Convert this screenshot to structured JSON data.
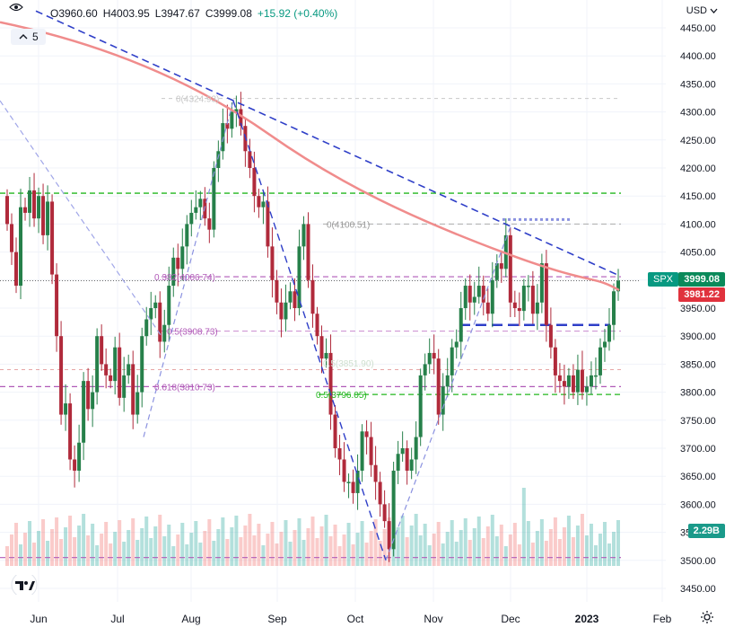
{
  "header": {
    "open": "O3960.60",
    "high": "H4003.95",
    "low": "L3947.67",
    "close": "C3999.08",
    "change": "+15.92 (+0.40%)",
    "interval": "5",
    "currency": "USD"
  },
  "tags": {
    "symbol": "SPX",
    "last_price": "3999.08",
    "ma_value": "3981.22",
    "volume": "2.29B"
  },
  "fib_labels": {
    "top": "0(4324.93)",
    "l382": "0.382(4006.74)",
    "l05": "0.5(3908.73)",
    "l618": "0.618(3810.73)",
    "right0": "0(4100.51)",
    "right05": "0.5(3796.05)",
    "mid": "0.5(3851.90)"
  },
  "colors": {
    "up": "#26804a",
    "down": "#b02a3b",
    "ma": "#f08c8c",
    "trend": "#2f3fc8",
    "green_level": "#22b61e",
    "purple_level": "#b05ab8",
    "price_tag": "#0a8a5a",
    "ma_tag": "#e0323d",
    "volume_tag": "#1a9a8a"
  },
  "chart_data": {
    "type": "candlestick",
    "symbol": "SPX",
    "y_axis_ticks": [
      4450,
      4400,
      4350,
      4300,
      4250,
      4200,
      4150,
      4100,
      4050,
      4000,
      3950,
      3900,
      3850,
      3800,
      3750,
      3700,
      3650,
      3600,
      3550,
      3500,
      3450
    ],
    "y_range": [
      3430,
      4470
    ],
    "x_axis_labels": [
      "Jun",
      "Jul",
      "Aug",
      "Sep",
      "Oct",
      "Nov",
      "Dec",
      "2023",
      "Feb"
    ],
    "closes": [
      4100,
      4050,
      3990,
      4130,
      4120,
      4160,
      4110,
      4150,
      4080,
      4140,
      4010,
      3900,
      3760,
      3780,
      3680,
      3660,
      3710,
      3820,
      3770,
      3800,
      3900,
      3850,
      3830,
      3820,
      3880,
      3790,
      3830,
      3850,
      3760,
      3800,
      3900,
      3930,
      3950,
      3960,
      3890,
      3920,
      3990,
      4040,
      4020,
      4060,
      4100,
      4120,
      4130,
      4145,
      4110,
      4090,
      4200,
      4230,
      4280,
      4270,
      4300,
      4305,
      4275,
      4230,
      4200,
      4150,
      4130,
      4140,
      4060,
      4000,
      3960,
      3930,
      3960,
      3980,
      3950,
      4060,
      4100,
      4000,
      3940,
      3900,
      3860,
      3870,
      3760,
      3700,
      3680,
      3640,
      3640,
      3620,
      3660,
      3730,
      3720,
      3670,
      3640,
      3600,
      3570,
      3520,
      3660,
      3690,
      3700,
      3660,
      3680,
      3720,
      3830,
      3850,
      3870,
      3860,
      3760,
      3810,
      3830,
      3880,
      3890,
      3950,
      3990,
      3960,
      3970,
      3990,
      3960,
      3940,
      4000,
      4030,
      4020,
      4080,
      3960,
      3950,
      3945,
      3990,
      3990,
      3940,
      3960,
      4030,
      3920,
      3880,
      3830,
      3820,
      3810,
      3830,
      3800,
      3840,
      3800,
      3810,
      3830,
      3830,
      3880,
      3890,
      3920,
      3980,
      3999
    ]
  }
}
